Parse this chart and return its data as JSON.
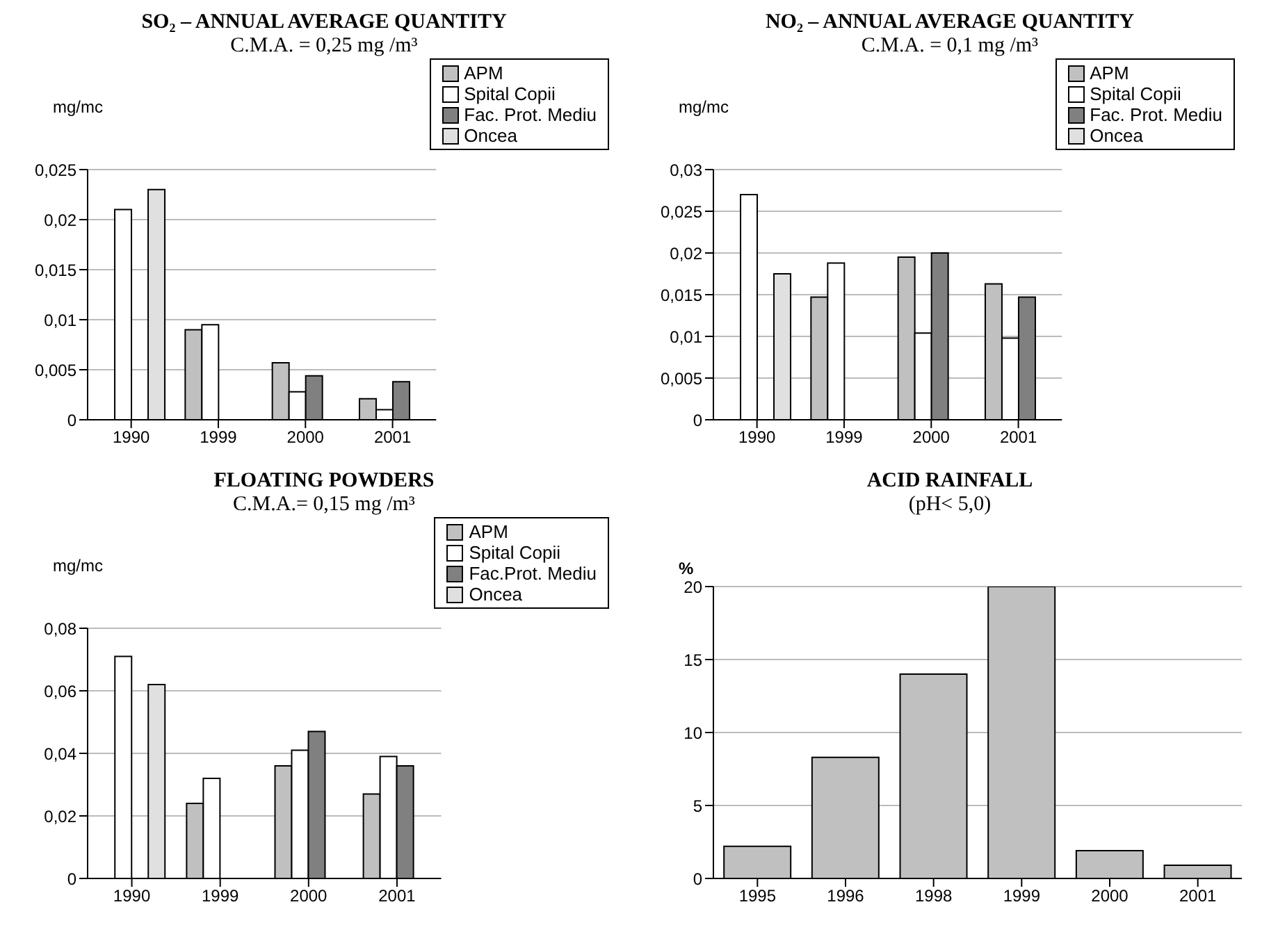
{
  "chart_data": [
    {
      "type": "bar",
      "title": "SO₂ – ANNUAL AVERAGE QUANTITY",
      "subtitle": "C.M.A. = 0,25 mg /m³",
      "ylabel": "mg/mc",
      "categories": [
        "1990",
        "1999",
        "2000",
        "2001"
      ],
      "series": [
        {
          "name": "APM",
          "color": "#c0c0c0",
          "values": [
            null,
            0.009,
            0.0057,
            0.0021
          ]
        },
        {
          "name": "Spital Copii",
          "color": "#ffffff",
          "values": [
            0.021,
            0.0095,
            0.0028,
            0.001
          ]
        },
        {
          "name": "Fac. Prot. Mediu",
          "color": "#808080",
          "values": [
            null,
            null,
            0.0044,
            0.0038
          ]
        },
        {
          "name": "Oncea",
          "color": "#e0e0e0",
          "values": [
            0.023,
            null,
            null,
            null
          ]
        }
      ],
      "ylim": [
        0,
        0.025
      ],
      "yticks": [
        0,
        {
          "value": 0.005,
          "label": "0,005"
        },
        {
          "value": 0.01,
          "label": "0,01"
        },
        {
          "value": 0.015,
          "label": "0,015"
        },
        {
          "value": 0.02,
          "label": "0,02"
        },
        {
          "value": 0.025,
          "label": "0,025"
        }
      ],
      "grid": "y",
      "legend": "top right"
    },
    {
      "type": "bar",
      "title": "NO₂ – ANNUAL AVERAGE QUANTITY",
      "subtitle": "C.M.A. = 0,1 mg /m³",
      "ylabel": "mg/mc",
      "categories": [
        "1990",
        "1999",
        "2000",
        "2001"
      ],
      "series": [
        {
          "name": "APM",
          "color": "#c0c0c0",
          "values": [
            null,
            0.0147,
            0.0195,
            0.0163
          ]
        },
        {
          "name": "Spital Copii",
          "color": "#ffffff",
          "values": [
            0.027,
            0.0188,
            0.0104,
            0.0098
          ]
        },
        {
          "name": "Fac. Prot. Mediu",
          "color": "#808080",
          "values": [
            null,
            null,
            0.02,
            0.0147
          ]
        },
        {
          "name": "Oncea",
          "color": "#e0e0e0",
          "values": [
            0.0175,
            null,
            null,
            null
          ]
        }
      ],
      "ylim": [
        0,
        0.03
      ],
      "yticks": [
        0,
        {
          "value": 0.005,
          "label": "0,005"
        },
        {
          "value": 0.01,
          "label": "0,01"
        },
        {
          "value": 0.015,
          "label": "0,015"
        },
        {
          "value": 0.02,
          "label": "0,02"
        },
        {
          "value": 0.025,
          "label": "0,025"
        },
        {
          "value": 0.03,
          "label": "0,03"
        }
      ],
      "grid": "y",
      "legend": "top right"
    },
    {
      "type": "bar",
      "title": "FLOATING POWDERS",
      "subtitle": "C.M.A.= 0,15 mg /m³",
      "ylabel": "mg/mc",
      "categories": [
        "1990",
        "1999",
        "2000",
        "2001"
      ],
      "series": [
        {
          "name": "APM",
          "color": "#c0c0c0",
          "values": [
            null,
            0.024,
            0.036,
            0.027
          ]
        },
        {
          "name": "Spital Copii",
          "color": "#ffffff",
          "values": [
            0.071,
            0.032,
            0.041,
            0.039
          ]
        },
        {
          "name": "Fac.Prot. Mediu",
          "color": "#808080",
          "values": [
            null,
            null,
            0.047,
            0.036
          ]
        },
        {
          "name": "Oncea",
          "color": "#e0e0e0",
          "values": [
            0.062,
            null,
            null,
            null
          ]
        }
      ],
      "ylim": [
        0,
        0.08
      ],
      "yticks": [
        0,
        {
          "value": 0.02,
          "label": "0,02"
        },
        {
          "value": 0.04,
          "label": "0,04"
        },
        {
          "value": 0.06,
          "label": "0,06"
        },
        {
          "value": 0.08,
          "label": "0,08"
        }
      ],
      "grid": "y",
      "legend": "top right"
    },
    {
      "type": "bar",
      "title": "ACID RAINFALL",
      "subtitle": "(pH< 5,0)",
      "ylabel": "%",
      "categories": [
        "1995",
        "1996",
        "1998",
        "1999",
        "2000",
        "2001"
      ],
      "series": [
        {
          "color": "#c0c0c0",
          "values": [
            2.2,
            8.3,
            14,
            20,
            1.9,
            0.9
          ]
        }
      ],
      "ylim": [
        0,
        20
      ],
      "yticks": [
        0,
        5,
        10,
        15,
        20
      ],
      "grid": "y"
    }
  ]
}
